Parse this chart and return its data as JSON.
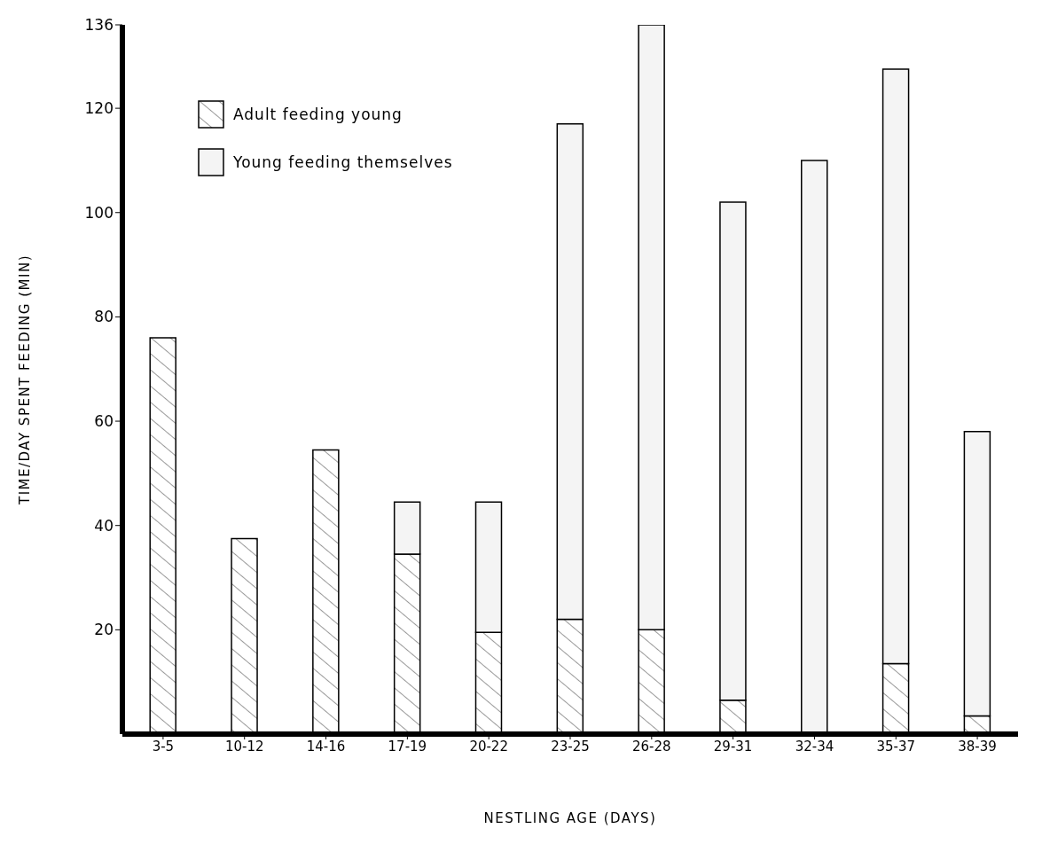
{
  "chart_data": {
    "type": "bar",
    "stacked": true,
    "xlabel": "NESTLING AGE   (DAYS)",
    "ylabel": "TIME/DAY SPENT FEEDING (MIN)",
    "categories": [
      "3-5",
      "10-12",
      "14-16",
      "17-19",
      "20-22",
      "23-25",
      "26-28",
      "29-31",
      "32-34",
      "35-37",
      "38-39"
    ],
    "series": [
      {
        "name": "Adult feeding young",
        "color": "#000000",
        "values": [
          76,
          37.5,
          54.5,
          34.5,
          19.5,
          22,
          20,
          6.5,
          0,
          13.5,
          3.5
        ]
      },
      {
        "name": "Young feeding themselves",
        "color": "#f4f4f4",
        "values": [
          0,
          0,
          0,
          10,
          25,
          95,
          116,
          95.5,
          110,
          114,
          54.5
        ]
      }
    ],
    "ylim": [
      0,
      136
    ],
    "yticks": [
      20,
      40,
      60,
      80,
      100,
      120,
      136
    ],
    "legend": "top left"
  }
}
